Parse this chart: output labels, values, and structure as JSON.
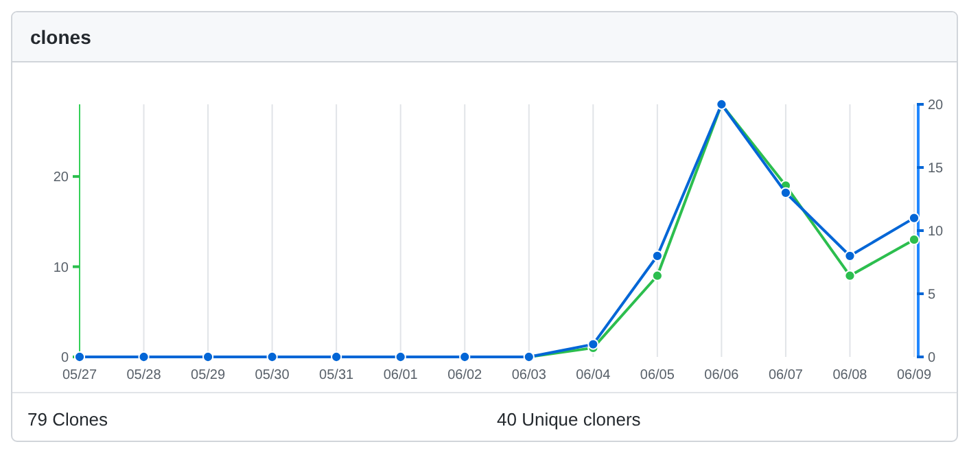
{
  "chart_data": {
    "type": "line",
    "title": "clones",
    "categories": [
      "05/27",
      "05/28",
      "05/29",
      "05/30",
      "05/31",
      "06/01",
      "06/02",
      "06/03",
      "06/04",
      "06/05",
      "06/06",
      "06/07",
      "06/08",
      "06/09"
    ],
    "series": [
      {
        "color": "#2cbe4e",
        "values": [
          null,
          null,
          null,
          null,
          null,
          null,
          0,
          0,
          1,
          9,
          28,
          19,
          9,
          13
        ]
      },
      {
        "color": "#0366d6",
        "axis": "y2",
        "values": [
          0,
          0,
          0,
          0,
          0,
          0,
          0,
          0,
          1,
          8,
          20,
          13,
          8,
          11
        ]
      }
    ],
    "ylim": [
      0,
      28
    ],
    "yticks": [
      0,
      10,
      20
    ],
    "y2lim": [
      0,
      20
    ],
    "y2ticks": [
      0,
      5,
      10,
      15,
      20
    ],
    "grid": "x",
    "marker": "circle",
    "annotations": [
      "79 Clones",
      "40 Unique cloners"
    ]
  }
}
